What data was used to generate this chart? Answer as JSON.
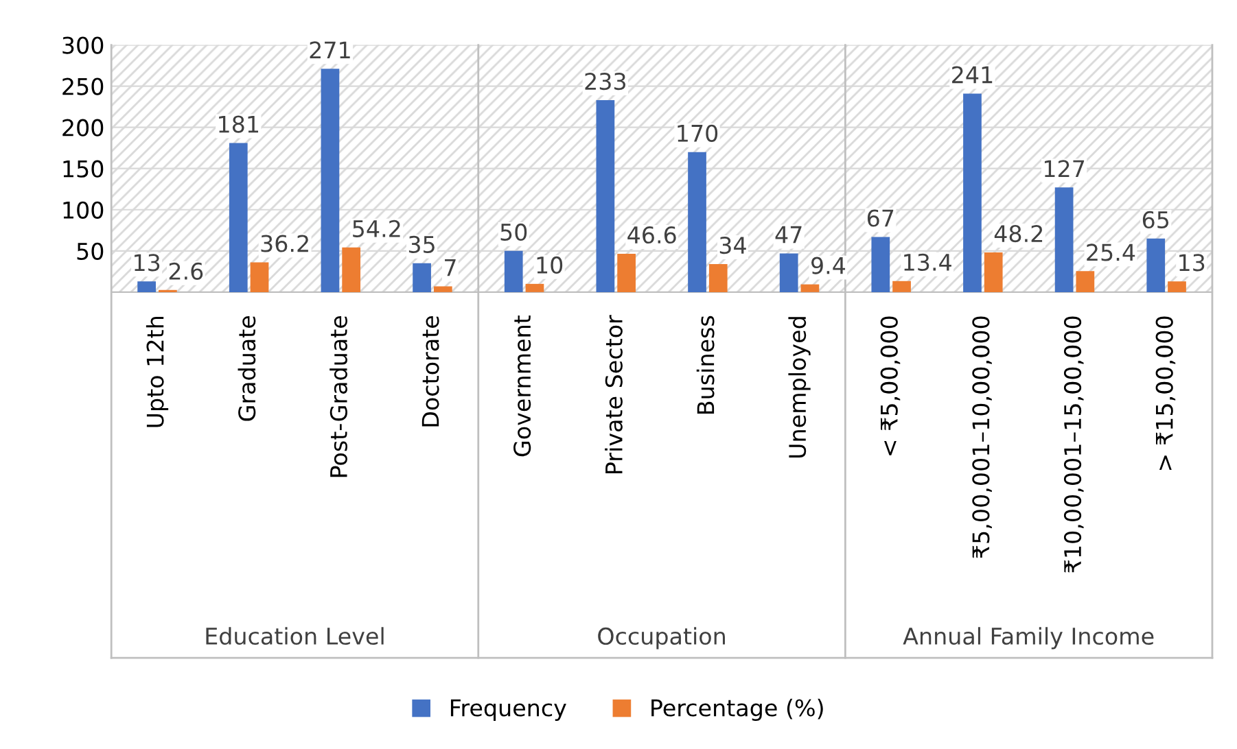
{
  "chart_data": {
    "type": "bar",
    "categories": [
      "Upto 12th",
      "Graduate",
      "Post-Graduate",
      "Doctorate",
      "Government",
      "Private Sector",
      "Business",
      "Unemployed",
      "< ₹5,00,000",
      "₹5,00,001–10,00,000",
      "₹10,00,001–15,00,000",
      "> ₹15,00,000"
    ],
    "series": [
      {
        "name": "Frequency",
        "color": "#4472c4",
        "values": [
          13,
          181,
          271,
          35,
          50,
          233,
          170,
          47,
          67,
          241,
          127,
          65
        ]
      },
      {
        "name": "Percentage (%)",
        "color": "#ed7d31",
        "values": [
          2.6,
          36.2,
          54.2,
          7,
          10,
          46.6,
          34,
          9.4,
          13.4,
          48.2,
          25.4,
          13
        ]
      }
    ],
    "ylim": [
      0,
      300
    ],
    "yticks": [
      50,
      100,
      150,
      200,
      250,
      300
    ],
    "grid": "y",
    "legend": "bottom",
    "data_labels": true,
    "annotations": [
      "Education Level",
      "Occupation",
      "Annual Family Income"
    ]
  }
}
